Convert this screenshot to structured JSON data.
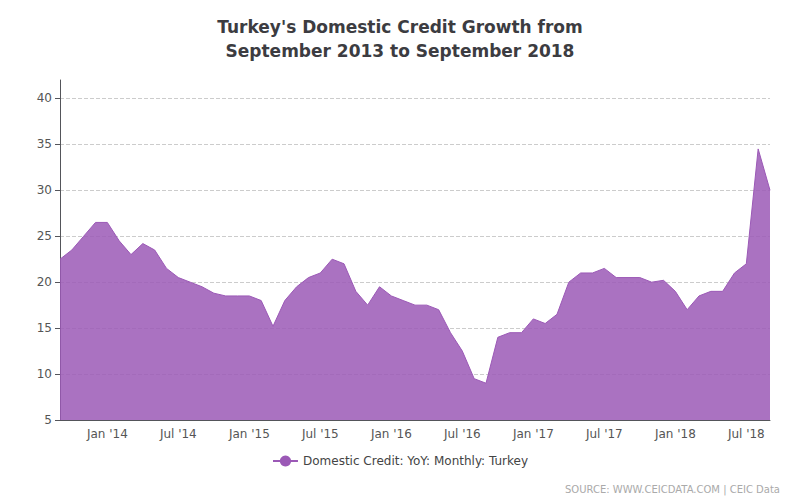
{
  "chart_data": {
    "type": "area",
    "title": "Turkey's Domestic Credit Growth from\nSeptember 2013 to September 2018",
    "source": "SOURCE: WWW.CEICDATA.COM | CEIC Data",
    "categories": [
      null,
      null,
      null,
      null,
      "Jan '14",
      null,
      null,
      null,
      null,
      null,
      "Jul '14",
      null,
      null,
      null,
      null,
      null,
      "Jan '15",
      null,
      null,
      null,
      null,
      null,
      "Jul '15",
      null,
      null,
      null,
      null,
      null,
      "Jan '16",
      null,
      null,
      null,
      null,
      null,
      "Jul '16",
      null,
      null,
      null,
      null,
      null,
      "Jan '17",
      null,
      null,
      null,
      null,
      null,
      "Jul '17",
      null,
      null,
      null,
      null,
      null,
      "Jan '18",
      null,
      null,
      null,
      null,
      null,
      "Jul '18",
      null,
      null
    ],
    "series": [
      {
        "name": "Domestic Credit: YoY: Monthly: Turkey",
        "color": "#9b59b6",
        "values": [
          22.5,
          23.5,
          25.0,
          26.5,
          26.5,
          24.5,
          23.0,
          24.2,
          23.5,
          21.5,
          20.5,
          20.0,
          19.5,
          18.8,
          18.5,
          18.5,
          18.5,
          18.0,
          15.2,
          18.0,
          19.5,
          20.5,
          21.0,
          22.5,
          22.0,
          19.0,
          17.5,
          19.5,
          18.5,
          18.0,
          17.5,
          17.5,
          17.0,
          14.5,
          12.5,
          9.5,
          9.0,
          14.0,
          14.5,
          14.5,
          16.0,
          15.5,
          16.5,
          20.0,
          21.0,
          21.0,
          21.5,
          20.5,
          20.5,
          20.5,
          20.0,
          20.2,
          19.0,
          17.0,
          18.5,
          19.0,
          19.0,
          21.0,
          22.0,
          34.5,
          30.0
        ]
      }
    ],
    "ylim": [
      5,
      42
    ],
    "yticks": [
      5,
      10,
      15,
      20,
      25,
      30,
      35,
      40
    ],
    "grid": true,
    "legend": "bottom"
  }
}
